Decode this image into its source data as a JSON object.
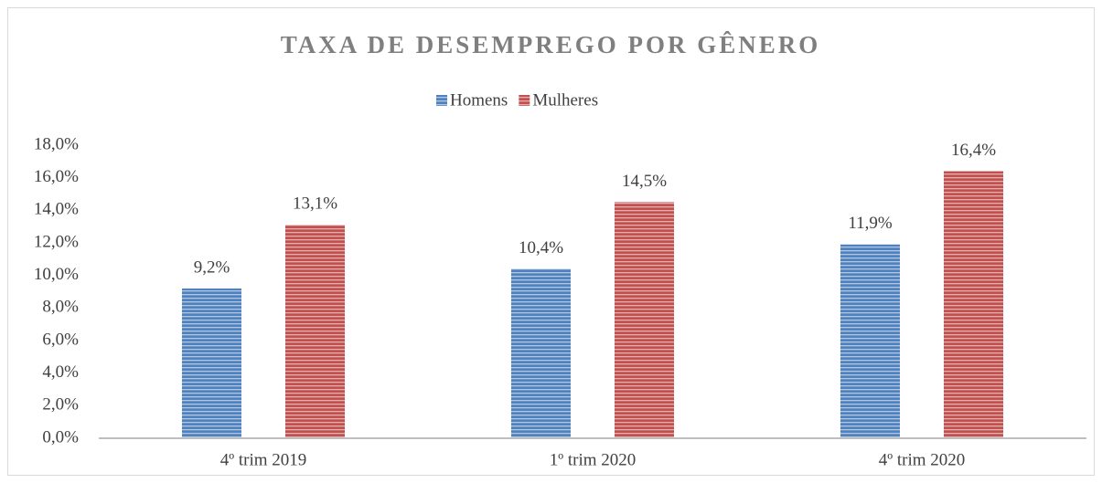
{
  "chart_data": {
    "type": "bar",
    "title": "TAXA DE DESEMPREGO POR GÊNERO",
    "categories": [
      "4º trim 2019",
      "1º trim 2020",
      "4º trim 2020"
    ],
    "series": [
      {
        "name": "Homens",
        "color": "#4f81bd",
        "values": [
          9.2,
          10.4,
          11.9
        ],
        "value_labels": [
          "9,2%",
          "10,4%",
          "11,9%"
        ]
      },
      {
        "name": "Mulheres",
        "color": "#c0504d",
        "values": [
          13.1,
          14.5,
          16.4
        ],
        "value_labels": [
          "13,1%",
          "14,5%",
          "16,4%"
        ]
      }
    ],
    "ylim": [
      0,
      18
    ],
    "yticks": [
      {
        "value": 0,
        "label": "0,0%"
      },
      {
        "value": 2,
        "label": "2,0%"
      },
      {
        "value": 4,
        "label": "4,0%"
      },
      {
        "value": 6,
        "label": "6,0%"
      },
      {
        "value": 8,
        "label": "8,0%"
      },
      {
        "value": 10,
        "label": "10,0%"
      },
      {
        "value": 12,
        "label": "12,0%"
      },
      {
        "value": 14,
        "label": "14,0%"
      },
      {
        "value": 16,
        "label": "16,0%"
      },
      {
        "value": 18,
        "label": "18,0%"
      }
    ],
    "grid": false,
    "legend": "top"
  }
}
